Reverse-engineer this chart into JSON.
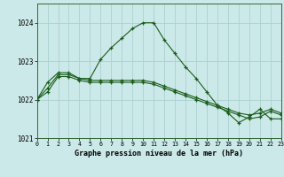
{
  "title": "Graphe pression niveau de la mer (hPa)",
  "bg_color": "#cce9e9",
  "grid_color": "#aad0d0",
  "line_color": "#1a5c1a",
  "xlim": [
    0,
    23
  ],
  "ylim": [
    1021.0,
    1024.5
  ],
  "yticks": [
    1021,
    1022,
    1023,
    1024
  ],
  "xticks": [
    0,
    1,
    2,
    3,
    4,
    5,
    6,
    7,
    8,
    9,
    10,
    11,
    12,
    13,
    14,
    15,
    16,
    17,
    18,
    19,
    20,
    21,
    22,
    23
  ],
  "series1_x": [
    0,
    1,
    2,
    3,
    4,
    5,
    6,
    7,
    8,
    9,
    10,
    11,
    12,
    13,
    14,
    15,
    16,
    17,
    18,
    19,
    20,
    21,
    22,
    23
  ],
  "series1_y": [
    1022.0,
    1022.45,
    1022.7,
    1022.7,
    1022.55,
    1022.55,
    1023.05,
    1023.35,
    1023.6,
    1023.85,
    1024.0,
    1024.0,
    1023.55,
    1023.2,
    1022.85,
    1022.55,
    1022.2,
    1021.85,
    1021.65,
    1021.4,
    1021.55,
    1021.75,
    1021.5,
    1021.5
  ],
  "series2_x": [
    0,
    1,
    2,
    3,
    4,
    5,
    6,
    7,
    8,
    9,
    10,
    11,
    12,
    13,
    14,
    15,
    16,
    17,
    18,
    19,
    20,
    21,
    22,
    23
  ],
  "series2_y": [
    1022.0,
    1022.3,
    1022.65,
    1022.65,
    1022.55,
    1022.5,
    1022.5,
    1022.5,
    1022.5,
    1022.5,
    1022.5,
    1022.45,
    1022.35,
    1022.25,
    1022.15,
    1022.05,
    1021.95,
    1021.85,
    1021.75,
    1021.65,
    1021.6,
    1021.65,
    1021.75,
    1021.65
  ],
  "series3_x": [
    0,
    1,
    2,
    3,
    4,
    5,
    6,
    7,
    8,
    9,
    10,
    11,
    12,
    13,
    14,
    15,
    16,
    17,
    18,
    19,
    20,
    21,
    22,
    23
  ],
  "series3_y": [
    1022.0,
    1022.2,
    1022.6,
    1022.6,
    1022.5,
    1022.45,
    1022.45,
    1022.45,
    1022.45,
    1022.45,
    1022.45,
    1022.4,
    1022.3,
    1022.2,
    1022.1,
    1022.0,
    1021.9,
    1021.8,
    1021.7,
    1021.6,
    1021.5,
    1021.55,
    1021.7,
    1021.6
  ]
}
